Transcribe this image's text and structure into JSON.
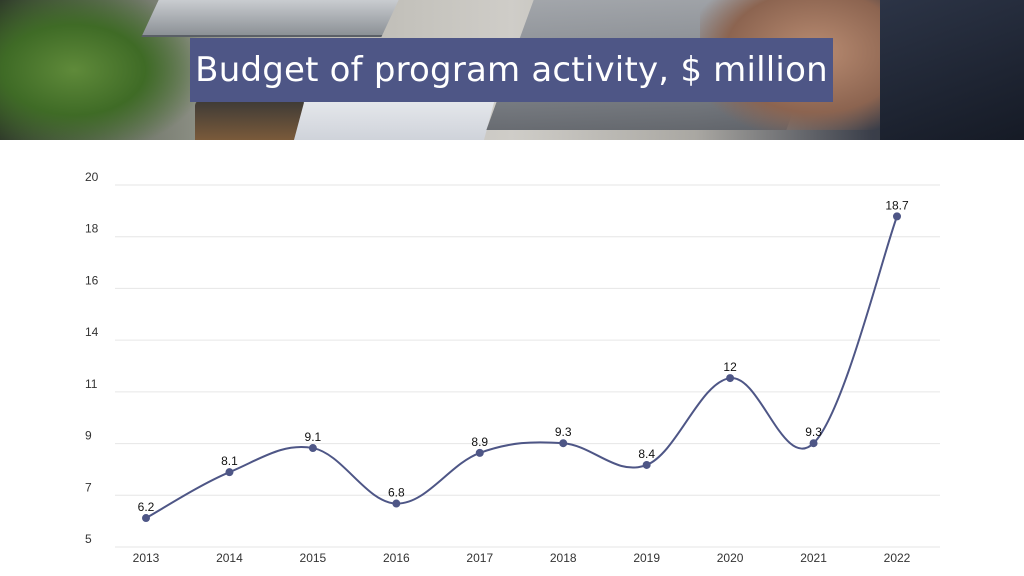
{
  "title": "Budget of program activity, $ million",
  "colors": {
    "title_bg": "#4e5686",
    "line": "#4e5686",
    "grid": "#e6e6e6"
  },
  "chart_data": {
    "type": "line",
    "categories": [
      "2013",
      "2014",
      "2015",
      "2016",
      "2017",
      "2018",
      "2019",
      "2020",
      "2021",
      "2022"
    ],
    "values": [
      6.2,
      8.1,
      9.1,
      6.8,
      8.9,
      9.3,
      8.4,
      12,
      9.3,
      18.7
    ],
    "data_labels": [
      "6.2",
      "8.1",
      "9.1",
      "6.8",
      "8.9",
      "9.3",
      "8.4",
      "12",
      "9.3",
      "18.7"
    ],
    "y_tick_labels": [
      "20",
      "18",
      "16",
      "14",
      "11",
      "9",
      "7",
      "5"
    ],
    "ylim": [
      5,
      20
    ],
    "grid": true,
    "xlabel": "",
    "ylabel": ""
  }
}
